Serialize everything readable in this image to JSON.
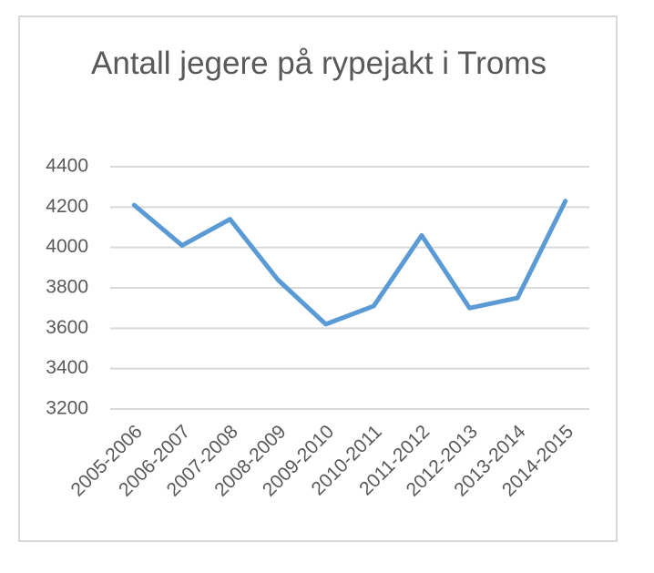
{
  "chart_data": {
    "type": "line",
    "title": "Antall jegere på rypejakt i Troms",
    "categories": [
      "2005-2006",
      "2006-2007",
      "2007-2008",
      "2008-2009",
      "2009-2010",
      "2010-2011",
      "2011-2012",
      "2012-2013",
      "2013-2014",
      "2014-2015"
    ],
    "values": [
      4210,
      4010,
      4140,
      3840,
      3620,
      3710,
      4060,
      3700,
      3750,
      4230
    ],
    "color": "#5b9bd5",
    "ylim": [
      3200,
      4400
    ],
    "yticks": [
      3200,
      3400,
      3600,
      3800,
      4000,
      4200,
      4400
    ],
    "grid": true
  }
}
